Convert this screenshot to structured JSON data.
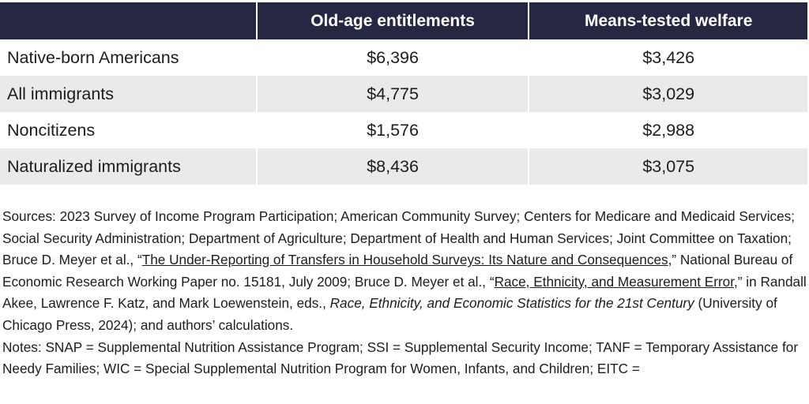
{
  "table": {
    "headers": [
      "",
      "Old-age entitlements",
      "Means-tested welfare"
    ],
    "rows": [
      {
        "label": "Native-born Americans",
        "old_age": "$6,396",
        "means_tested": "$3,426"
      },
      {
        "label": "All immigrants",
        "old_age": "$4,775",
        "means_tested": "$3,029"
      },
      {
        "label": "Noncitizens",
        "old_age": "$1,576",
        "means_tested": "$2,988"
      },
      {
        "label": "Naturalized immigrants",
        "old_age": "$8,436",
        "means_tested": "$3,075"
      }
    ],
    "header_color": "#262743",
    "shade_color": "#eaeaea"
  },
  "sources": {
    "part1": "Sources: 2023 Survey of Income Program Participation; American Community Survey; Centers for Medicare and Medicaid Services; Social Security Administration; Department of Agriculture; Department of Health and Human Services; Joint Committee on Taxation; Bruce D. Meyer et al., “",
    "link1": "The Under-Reporting of Transfers in Household Surveys: Its Nature and Consequences",
    "part2": ",” National Bureau of Economic Research Working Paper no. 15181, July 2009; Bruce D. Meyer et al., “",
    "link2": "Race, Ethnicity, and Measurement Error",
    "part3": ",” in Randall Akee, Lawrence F. Katz, and Mark Loewenstein, eds., ",
    "book_title": "Race, Ethnicity, and Economic Statistics for the 21st Century",
    "part4": " (University of Chicago Press, 2024); and authors’ calculations."
  },
  "notes": {
    "text": "Notes: SNAP = Supplemental Nutrition Assistance Program; SSI = Supplemental Security Income; TANF = Temporary Assistance for Needy Families; WIC = Special Supplemental Nutrition Program for Women, Infants, and Children; EITC ="
  }
}
